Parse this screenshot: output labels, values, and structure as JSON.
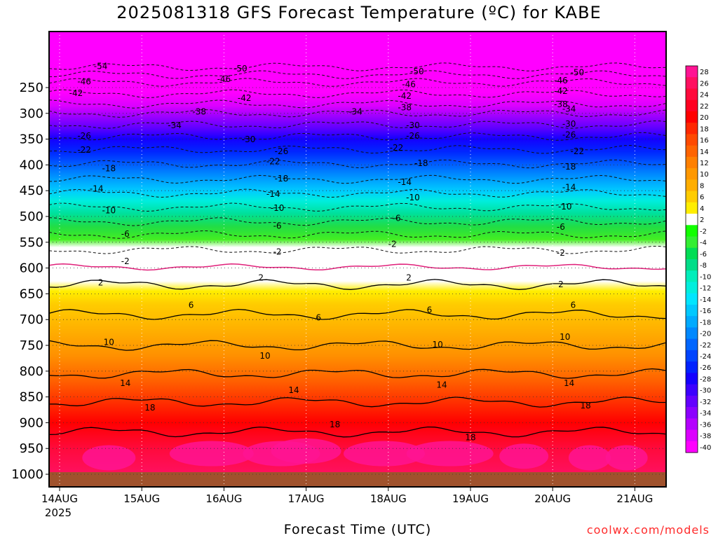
{
  "title": "2025081318 GFS Forecast Temperature (ºC) for KABE",
  "x_axis_title": "Forecast Time (UTC)",
  "credit": "coolwx.com/models",
  "chart_data": {
    "type": "heatmap",
    "title": "2025081318 GFS Forecast Temperature (ºC) for KABE",
    "xlabel": "Forecast Time (UTC)",
    "ylabel": "",
    "x_ticks": [
      "14AUG",
      "15AUG",
      "16AUG",
      "17AUG",
      "18AUG",
      "19AUG",
      "20AUG",
      "21AUG"
    ],
    "x_tick_sublabel": "2025",
    "y_ticks": [
      250,
      300,
      350,
      400,
      450,
      500,
      550,
      600,
      650,
      700,
      750,
      800,
      850,
      900,
      950,
      1000
    ],
    "ylim": [
      1000,
      200
    ],
    "colorbar_labels": [
      28,
      26,
      24,
      22,
      20,
      18,
      16,
      14,
      12,
      10,
      8,
      6,
      4,
      2,
      -2,
      -4,
      -6,
      -8,
      -10,
      -12,
      -14,
      -16,
      -18,
      -20,
      -22,
      -24,
      -26,
      -28,
      -30,
      -32,
      -34,
      -36,
      -38,
      -40
    ],
    "colorbar_colors": [
      "#ff1493",
      "#ff1060",
      "#ff0a3c",
      "#ff0020",
      "#ff0000",
      "#ff2800",
      "#ff4a00",
      "#ff6400",
      "#ff8000",
      "#ff9800",
      "#ffae00",
      "#ffcc00",
      "#ffee00",
      "#ffffff",
      "#11ff00",
      "#33ee33",
      "#00dd55",
      "#00dd88",
      "#00eebb",
      "#00eedd",
      "#00e5ff",
      "#00c8ff",
      "#00aaff",
      "#0088ff",
      "#0066ff",
      "#0044ff",
      "#0022ff",
      "#1400ff",
      "#3c00ff",
      "#6400ff",
      "#8c00ff",
      "#b400ff",
      "#dc00ff",
      "#ff00ff"
    ],
    "contour_labels": [
      {
        "x": 0.5,
        "p": 210,
        "v": "-54"
      },
      {
        "x": 2.2,
        "p": 215,
        "v": "-50"
      },
      {
        "x": 4.35,
        "p": 220,
        "v": "-50"
      },
      {
        "x": 6.3,
        "p": 222,
        "v": "-50"
      },
      {
        "x": 0.3,
        "p": 240,
        "v": "-46"
      },
      {
        "x": 2.0,
        "p": 235,
        "v": "-46"
      },
      {
        "x": 4.25,
        "p": 245,
        "v": "-46"
      },
      {
        "x": 6.1,
        "p": 238,
        "v": "-46"
      },
      {
        "x": 0.2,
        "p": 262,
        "v": "-42"
      },
      {
        "x": 2.25,
        "p": 272,
        "v": "-42"
      },
      {
        "x": 4.2,
        "p": 268,
        "v": "-42"
      },
      {
        "x": 6.1,
        "p": 258,
        "v": "-42"
      },
      {
        "x": 1.7,
        "p": 298,
        "v": "-38"
      },
      {
        "x": 4.2,
        "p": 290,
        "v": "-38"
      },
      {
        "x": 6.1,
        "p": 284,
        "v": "-38"
      },
      {
        "x": 1.4,
        "p": 325,
        "v": "-34"
      },
      {
        "x": 3.6,
        "p": 298,
        "v": "-34"
      },
      {
        "x": 6.2,
        "p": 293,
        "v": "-34"
      },
      {
        "x": 2.3,
        "p": 352,
        "v": "-30"
      },
      {
        "x": 4.3,
        "p": 325,
        "v": "-30"
      },
      {
        "x": 6.2,
        "p": 322,
        "v": "-30"
      },
      {
        "x": 0.3,
        "p": 345,
        "v": "-26"
      },
      {
        "x": 2.7,
        "p": 375,
        "v": "-26"
      },
      {
        "x": 4.3,
        "p": 345,
        "v": "-26"
      },
      {
        "x": 6.2,
        "p": 343,
        "v": "-26"
      },
      {
        "x": 0.3,
        "p": 372,
        "v": "-22"
      },
      {
        "x": 2.6,
        "p": 395,
        "v": "-22"
      },
      {
        "x": 4.1,
        "p": 368,
        "v": "-22"
      },
      {
        "x": 6.3,
        "p": 375,
        "v": "-22"
      },
      {
        "x": 0.6,
        "p": 408,
        "v": "-18"
      },
      {
        "x": 2.7,
        "p": 428,
        "v": "-18"
      },
      {
        "x": 4.4,
        "p": 398,
        "v": "-18"
      },
      {
        "x": 6.2,
        "p": 405,
        "v": "-18"
      },
      {
        "x": 0.45,
        "p": 448,
        "v": "-14"
      },
      {
        "x": 2.6,
        "p": 458,
        "v": "-14"
      },
      {
        "x": 4.2,
        "p": 435,
        "v": "-14"
      },
      {
        "x": 6.2,
        "p": 445,
        "v": "-14"
      },
      {
        "x": 0.6,
        "p": 490,
        "v": "-10"
      },
      {
        "x": 2.65,
        "p": 485,
        "v": "-10"
      },
      {
        "x": 4.3,
        "p": 465,
        "v": "-10"
      },
      {
        "x": 6.15,
        "p": 482,
        "v": "-10"
      },
      {
        "x": 0.8,
        "p": 535,
        "v": "-6"
      },
      {
        "x": 2.65,
        "p": 520,
        "v": "-6"
      },
      {
        "x": 4.1,
        "p": 505,
        "v": "-6"
      },
      {
        "x": 6.1,
        "p": 522,
        "v": "-6"
      },
      {
        "x": 0.8,
        "p": 588,
        "v": "-2"
      },
      {
        "x": 2.65,
        "p": 570,
        "v": "-2"
      },
      {
        "x": 4.05,
        "p": 555,
        "v": "-2"
      },
      {
        "x": 6.1,
        "p": 572,
        "v": "-2"
      },
      {
        "x": 0.5,
        "p": 630,
        "v": "2"
      },
      {
        "x": 2.45,
        "p": 620,
        "v": "2"
      },
      {
        "x": 4.25,
        "p": 620,
        "v": "2"
      },
      {
        "x": 6.1,
        "p": 633,
        "v": "2"
      },
      {
        "x": 1.6,
        "p": 673,
        "v": "6"
      },
      {
        "x": 3.15,
        "p": 698,
        "v": "6"
      },
      {
        "x": 4.5,
        "p": 683,
        "v": "6"
      },
      {
        "x": 6.25,
        "p": 673,
        "v": "6"
      },
      {
        "x": 0.6,
        "p": 745,
        "v": "10"
      },
      {
        "x": 2.5,
        "p": 772,
        "v": "10"
      },
      {
        "x": 4.6,
        "p": 750,
        "v": "10"
      },
      {
        "x": 6.15,
        "p": 735,
        "v": "10"
      },
      {
        "x": 0.8,
        "p": 825,
        "v": "14"
      },
      {
        "x": 2.85,
        "p": 838,
        "v": "14"
      },
      {
        "x": 4.65,
        "p": 828,
        "v": "14"
      },
      {
        "x": 6.2,
        "p": 825,
        "v": "14"
      },
      {
        "x": 1.1,
        "p": 872,
        "v": "18"
      },
      {
        "x": 3.35,
        "p": 905,
        "v": "18"
      },
      {
        "x": 5.0,
        "p": 930,
        "v": "18"
      },
      {
        "x": 6.4,
        "p": 868,
        "v": "18"
      }
    ],
    "grid": true
  }
}
